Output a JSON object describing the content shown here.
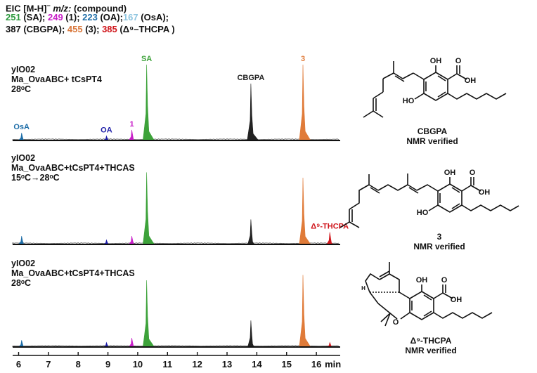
{
  "legend": {
    "title": "EIC [M-H]",
    "title_sup": "−",
    "title_mz": " m/z:",
    "title_rest": " (compound)",
    "row1": [
      {
        "mz": "251",
        "name": " (SA); ",
        "color": "#2e9a3f"
      },
      {
        "mz": "249",
        "name": " (1); ",
        "color": "#c81fc8"
      },
      {
        "mz": "223",
        "name": " (OA);",
        "color": "#1f6ea8"
      },
      {
        "mz": "167",
        "name": " (OsA);",
        "color": "#8ec5e0"
      }
    ],
    "row2": [
      {
        "mz": "387",
        "name": " (CBGPA); ",
        "color": "#111111"
      },
      {
        "mz": "455",
        "name": " (3); ",
        "color": "#d9773a"
      },
      {
        "mz": "385",
        "name": " (Δ⁹–THCPA )",
        "color": "#d0161c"
      }
    ]
  },
  "traces": [
    {
      "line1": "yIO02",
      "line2": "Ma_OvaABC+ tCsPT4",
      "line3": "28ᵒC"
    },
    {
      "line1": "yIO02",
      "line2": "Ma_OvaABC+tCsPT4+THCAS",
      "line3": "15ᵒC→28ᵒC"
    },
    {
      "line1": "yIO02",
      "line2": "Ma_OvaABC+tCsPT4+THCAS",
      "line3": "28ᵒC"
    }
  ],
  "structures": [
    {
      "name": "CBGPA",
      "status": "NMR verified"
    },
    {
      "name": "3",
      "status": "NMR verified"
    },
    {
      "name": "Δ⁹-THCPA",
      "status": "NMR verified"
    }
  ],
  "chem": {
    "OH": "OH",
    "O": "O",
    "HO": "HO",
    "H": "H"
  },
  "chart_data": {
    "type": "line",
    "title": "EIC [M-H]− m/z: (compound)",
    "xlabel": "min",
    "ylabel": "",
    "xlim": [
      5.8,
      16.8
    ],
    "xticks": [
      6,
      7,
      8,
      9,
      10,
      11,
      12,
      13,
      14,
      15,
      16
    ],
    "xtick_labels": [
      "6",
      "7",
      "8",
      "9",
      "10",
      "11",
      "12",
      "13",
      "14",
      "15",
      "16"
    ],
    "panels": [
      {
        "name": "yIO02 Ma_OvaABC+ tCsPT4 28ᵒC",
        "peaks": [
          {
            "compound": "OsA",
            "mz": 167,
            "rt": 6.1,
            "intensity": 0.1,
            "color": "#1f6ea8",
            "label": "OsA"
          },
          {
            "compound": "OA",
            "mz": 223,
            "rt": 8.95,
            "intensity": 0.06,
            "color": "#1f1fa8",
            "label": "OA"
          },
          {
            "compound": "1",
            "mz": 249,
            "rt": 9.8,
            "intensity": 0.14,
            "color": "#c81fc8",
            "label": "1"
          },
          {
            "compound": "SA",
            "mz": 251,
            "rt": 10.3,
            "intensity": 1.0,
            "color": "#3da23a",
            "label": "SA"
          },
          {
            "compound": "CBGPA",
            "mz": 387,
            "rt": 13.8,
            "intensity": 0.75,
            "color": "#222222",
            "label": "CBGPA"
          },
          {
            "compound": "3",
            "mz": 455,
            "rt": 15.55,
            "intensity": 1.0,
            "color": "#e07b39",
            "label": "3"
          }
        ]
      },
      {
        "name": "yIO02 Ma_OvaABC+tCsPT4+THCAS 15ᵒC→28ᵒC",
        "peaks": [
          {
            "compound": "OsA",
            "mz": 167,
            "rt": 6.1,
            "intensity": 0.11,
            "color": "#1f6ea8",
            "label": ""
          },
          {
            "compound": "OA",
            "mz": 223,
            "rt": 8.95,
            "intensity": 0.06,
            "color": "#1f1fa8",
            "label": ""
          },
          {
            "compound": "1",
            "mz": 249,
            "rt": 9.8,
            "intensity": 0.11,
            "color": "#c81fc8",
            "label": ""
          },
          {
            "compound": "SA",
            "mz": 251,
            "rt": 10.3,
            "intensity": 0.95,
            "color": "#3da23a",
            "label": ""
          },
          {
            "compound": "CBGPA",
            "mz": 387,
            "rt": 13.8,
            "intensity": 0.33,
            "color": "#222222",
            "label": ""
          },
          {
            "compound": "3",
            "mz": 455,
            "rt": 15.55,
            "intensity": 0.88,
            "color": "#e07b39",
            "label": ""
          },
          {
            "compound": "Δ⁹-THCPA",
            "mz": 385,
            "rt": 16.45,
            "intensity": 0.16,
            "color": "#d0161c",
            "label": "Δ⁹-THCPA"
          }
        ]
      },
      {
        "name": "yIO02 Ma_OvaABC+tCsPT4+THCAS 28ᵒC",
        "peaks": [
          {
            "compound": "OsA",
            "mz": 167,
            "rt": 6.1,
            "intensity": 0.09,
            "color": "#1f6ea8",
            "label": ""
          },
          {
            "compound": "OA",
            "mz": 223,
            "rt": 8.95,
            "intensity": 0.06,
            "color": "#1f1fa8",
            "label": ""
          },
          {
            "compound": "1",
            "mz": 249,
            "rt": 9.8,
            "intensity": 0.12,
            "color": "#c81fc8",
            "label": ""
          },
          {
            "compound": "SA",
            "mz": 251,
            "rt": 10.3,
            "intensity": 0.88,
            "color": "#3da23a",
            "label": ""
          },
          {
            "compound": "CBGPA",
            "mz": 387,
            "rt": 13.8,
            "intensity": 0.35,
            "color": "#222222",
            "label": ""
          },
          {
            "compound": "3",
            "mz": 455,
            "rt": 15.55,
            "intensity": 0.95,
            "color": "#e07b39",
            "label": ""
          },
          {
            "compound": "Δ⁹-THCPA",
            "mz": 385,
            "rt": 16.45,
            "intensity": 0.06,
            "color": "#d0161c",
            "label": ""
          }
        ]
      }
    ]
  }
}
